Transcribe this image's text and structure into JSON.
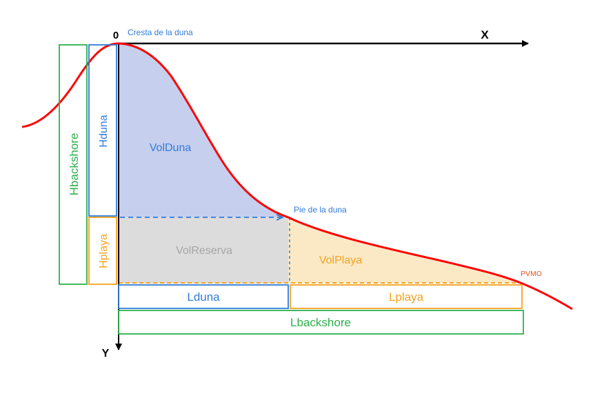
{
  "axes": {
    "origin_label": "0",
    "x_label": "X",
    "y_label": "Y"
  },
  "points": {
    "crest": "Cresta de la duna",
    "toe": "Pie de la duna",
    "pvmo": "PVMO"
  },
  "areas": {
    "vol_duna": "VolDuna",
    "vol_reserva": "VolReserva",
    "vol_playa": "VolPlaya"
  },
  "vertical_dimensions": {
    "h_backshore": "Hbackshore",
    "h_duna": "Hduna",
    "h_playa": "Hplaya"
  },
  "horizontal_dimensions": {
    "l_duna": "Lduna",
    "l_playa": "Lplaya",
    "l_backshore": "Lbackshore"
  },
  "colors": {
    "profile": "#ff0000",
    "axis": "#000000",
    "duna": "#2f7bd8",
    "duna_fill": "#c7cfee",
    "reserva_fill": "#dcdcdc",
    "reserva_text": "#a6a6a6",
    "playa": "#f5a21e",
    "playa_fill": "#fbe9c6",
    "backshore": "#2bb04a",
    "pvmo_text": "#e0531a"
  }
}
